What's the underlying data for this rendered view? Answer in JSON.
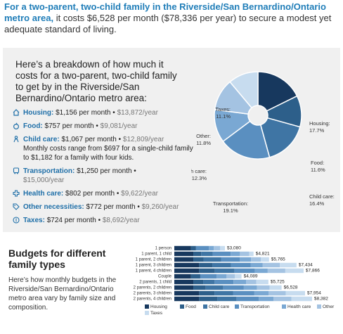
{
  "header": {
    "title_part1": "For a two-parent, two-child family in the Riverside/San Bernardino/Ontario metro area,",
    "title_part2": " it costs $6,528 per month ($78,336 per year) to secure a modest yet adequate standard of living."
  },
  "breakdown": {
    "intro": "Here’s a breakdown of how much it costs for a two-parent, two-child family to get by in the Riverside/San Bernardino/Ontario metro area:",
    "items": [
      {
        "label": "Housing:",
        "monthly": "$1,156 per month",
        "yearly": "$13,872/year",
        "icon": "house-icon"
      },
      {
        "label": "Food:",
        "monthly": "$757 per month",
        "yearly": "$9,081/year",
        "icon": "apple-icon"
      },
      {
        "label": "Child care:",
        "monthly": "$1,067 per month",
        "yearly": "$12,809/year",
        "icon": "child-icon",
        "note": "Monthly costs range from $697 for a single-child family to $1,182 for a family with four kids."
      },
      {
        "label": "Transportation:",
        "monthly": "$1,250 per month",
        "yearly": "$15,000/year",
        "icon": "bus-icon"
      },
      {
        "label": "Health care:",
        "monthly": "$802 per month",
        "yearly": "$9,622/year",
        "icon": "health-cross-icon"
      },
      {
        "label": "Other necessities:",
        "monthly": "$772 per month",
        "yearly": "$9,260/year",
        "icon": "tag-icon"
      },
      {
        "label": "Taxes:",
        "monthly": "$724 per month",
        "yearly": "$8,692/year",
        "icon": "coin-icon"
      }
    ]
  },
  "lower": {
    "title": "Budgets for different family types",
    "description": "Here’s how monthly budgets in the Riverside/San Bernardino/Ontario metro area vary by family size and composition."
  },
  "chart_data": [
    {
      "type": "pie",
      "slices": [
        {
          "name": "Housing:",
          "value": 17.7,
          "label": "17.7%",
          "color": "#17385e"
        },
        {
          "name": "Food:",
          "value": 11.6,
          "label": "11.6%",
          "color": "#2d5f8a"
        },
        {
          "name": "Child care:",
          "value": 16.4,
          "label": "16.4%",
          "color": "#3f75a4"
        },
        {
          "name": "Transportation:",
          "value": 19.1,
          "label": "19.1%",
          "color": "#5a8fc0"
        },
        {
          "name": "Health care:",
          "value": 12.3,
          "label": "12.3%",
          "color": "#7aa8d3"
        },
        {
          "name": "Other:",
          "value": 11.8,
          "label": "11.8%",
          "color": "#a4c3e2"
        },
        {
          "name": "Taxes:",
          "value": 11.1,
          "label": "11.1%",
          "color": "#c7dcef"
        }
      ]
    },
    {
      "type": "bar",
      "orientation": "horizontal",
      "stacked": true,
      "categories": [
        "1 person",
        "1 parent, 1 child",
        "1 parent, 2 children",
        "1 parent, 3 children",
        "1 parent, 4 children",
        "Couple",
        "2 parents, 1 child",
        "2 parents, 2 children",
        "2 parents, 3 children",
        "2 parents, 4 children"
      ],
      "totals": [
        3080,
        4821,
        5765,
        7434,
        7866,
        4089,
        5725,
        6528,
        7954,
        8382
      ],
      "total_labels": [
        "$3,080",
        "$4,821",
        "$5,765",
        "$7,434",
        "$7,866",
        "$4,089",
        "$5,725",
        "$6,528",
        "$7,954",
        "$8,382"
      ],
      "series": [
        {
          "name": "Housing",
          "color": "#17385e",
          "values": [
            1010,
            1156,
            1156,
            1511,
            1511,
            1010,
            1156,
            1156,
            1511,
            1511
          ]
        },
        {
          "name": "Food",
          "color": "#2d5f8a",
          "values": [
            310,
            480,
            620,
            800,
            960,
            570,
            600,
            757,
            930,
            1100
          ]
        },
        {
          "name": "Child care",
          "color": "#3f75a4",
          "values": [
            0,
            697,
            1067,
            1130,
            1182,
            0,
            697,
            1067,
            1130,
            1182
          ]
        },
        {
          "name": "Transportation",
          "color": "#5a8fc0",
          "values": [
            780,
            1100,
            1150,
            1200,
            1250,
            1000,
            1150,
            1250,
            1300,
            1350
          ]
        },
        {
          "name": "Health care",
          "color": "#7aa8d3",
          "values": [
            300,
            560,
            680,
            740,
            780,
            600,
            760,
            802,
            860,
            900
          ]
        },
        {
          "name": "Other",
          "color": "#a4c3e2",
          "values": [
            380,
            560,
            600,
            1040,
            1070,
            510,
            630,
            772,
            1050,
            1080
          ]
        },
        {
          "name": "Taxes",
          "color": "#c7dcef",
          "values": [
            300,
            268,
            492,
            1013,
            1113,
            399,
            732,
            724,
            1173,
            1259
          ]
        }
      ]
    }
  ]
}
